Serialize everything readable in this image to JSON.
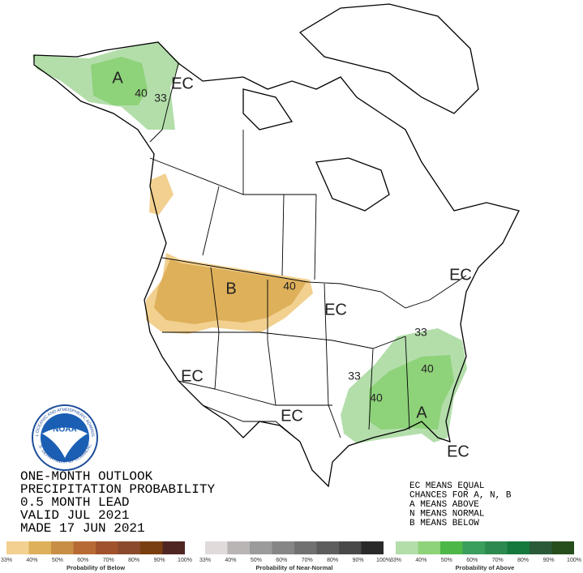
{
  "title_block": [
    "ONE-MONTH OUTLOOK",
    "PRECIPITATION PROBABILITY",
    "0.5 MONTH LEAD",
    "VALID JUL 2021",
    "MADE 17 JUN 2021"
  ],
  "key": [
    "EC MEANS EQUAL",
    "CHANCES FOR A, N, B",
    "A MEANS ABOVE",
    "N MEANS NORMAL",
    "B MEANS BELOW"
  ],
  "map_labels": [
    "A",
    "40",
    "33",
    "EC",
    "B",
    "40",
    "EC",
    "EC",
    "33",
    "40",
    "33",
    "40",
    "A",
    "EC",
    "EC",
    "EC"
  ],
  "logo": {
    "name": "NOAA",
    "ring_top": "NATIONAL OCEANIC AND ATMOSPHERIC ADMINISTRATION",
    "ring_bottom": "U.S. DEPARTMENT OF COMMERCE"
  },
  "scales": [
    {
      "title": "Probability of Below",
      "labels": [
        "33%",
        "40%",
        "50%",
        "60%",
        "70%",
        "80%",
        "90%",
        "100%"
      ],
      "colors": [
        "#f2d08f",
        "#deb05a",
        "#c98e45",
        "#b86a36",
        "#a0522d",
        "#8b4a2b",
        "#7a3f10",
        "#4f2622"
      ]
    },
    {
      "title": "Probability of Near-Normal",
      "labels": [
        "33%",
        "40%",
        "50%",
        "60%",
        "70%",
        "80%",
        "90%",
        "100%"
      ],
      "colors": [
        "#e0dada",
        "#b9b5b5",
        "#9c9b9b",
        "#878686",
        "#727171",
        "#5e5d5d",
        "#4a4949",
        "#2b2a2a"
      ]
    },
    {
      "title": "Probability of Above",
      "labels": [
        "33%",
        "40%",
        "50%",
        "60%",
        "70%",
        "80%",
        "90%",
        "100%"
      ],
      "colors": [
        "#b3deaa",
        "#8ed27a",
        "#4db848",
        "#3a9e5c",
        "#2c8a4e",
        "#16793c",
        "#2a5a38",
        "#264d1c"
      ]
    }
  ]
}
